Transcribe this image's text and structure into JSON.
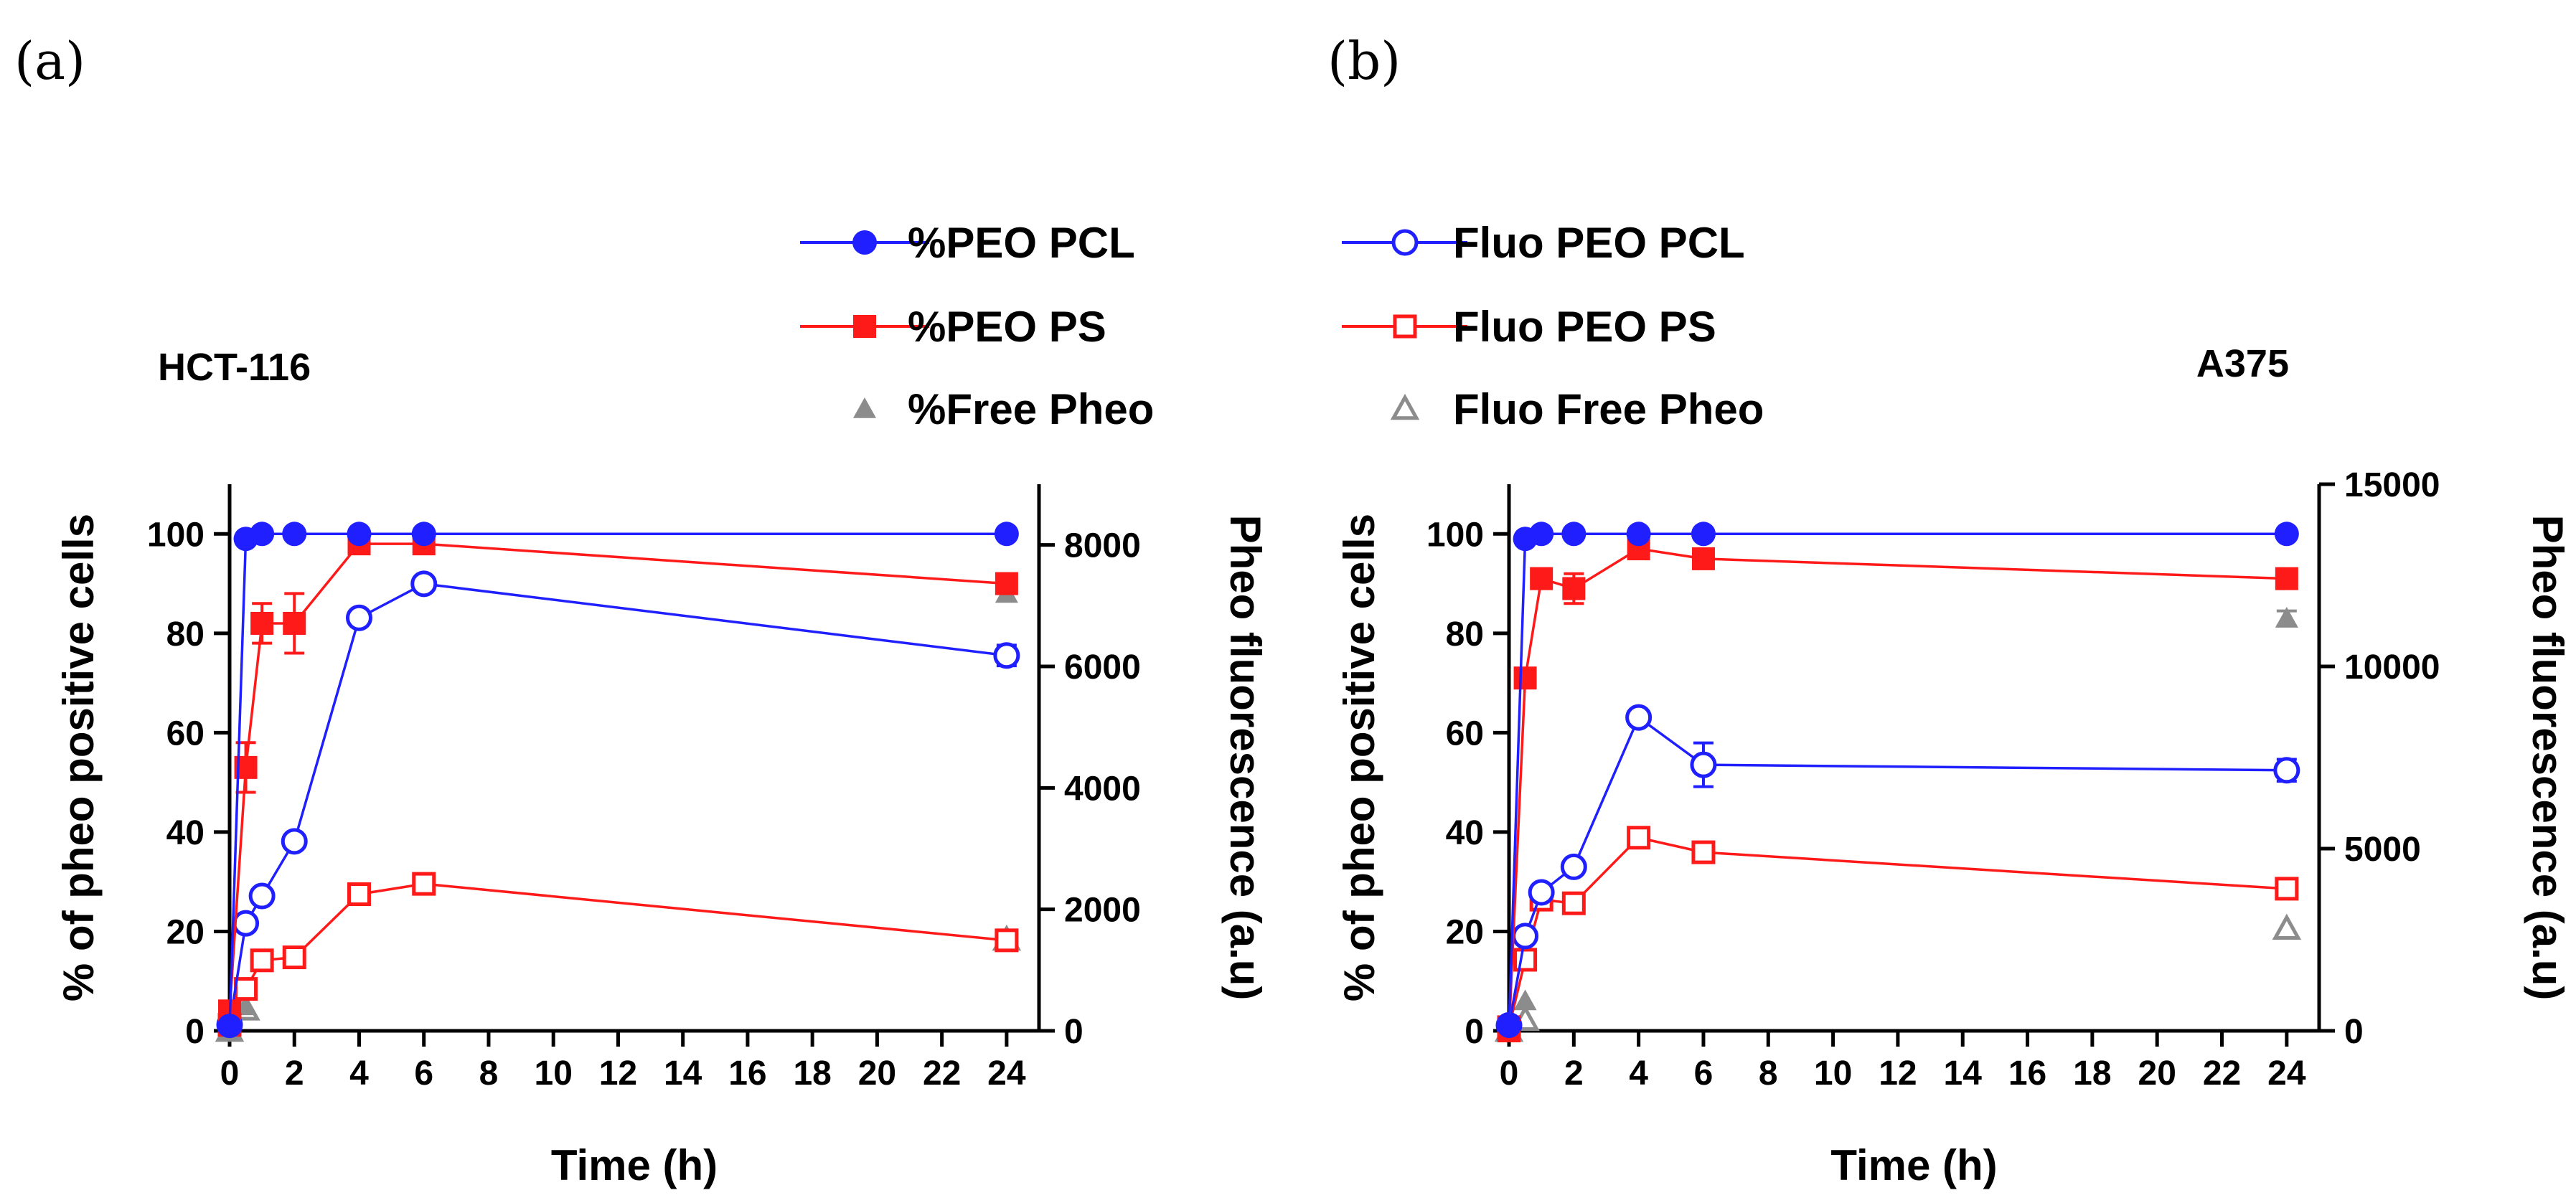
{
  "figure": {
    "panel_labels": [
      "(a)",
      "(b)"
    ],
    "legend": {
      "items": [
        {
          "key": "pct_peo_pcl",
          "label": "%PEO PCL",
          "color": "#1f1fff",
          "marker": "circle-filled"
        },
        {
          "key": "pct_peo_ps",
          "label": "%PEO PS",
          "color": "#ff1a1a",
          "marker": "square-filled"
        },
        {
          "key": "pct_free_pheo",
          "label": "%Free Pheo",
          "color": "#8c8c8c",
          "marker": "triangle-filled"
        },
        {
          "key": "fluo_peo_pcl",
          "label": "Fluo PEO PCL",
          "color": "#1f1fff",
          "marker": "circle-open"
        },
        {
          "key": "fluo_peo_ps",
          "label": "Fluo PEO PS",
          "color": "#ff1a1a",
          "marker": "square-open"
        },
        {
          "key": "fluo_free_pheo",
          "label": "Fluo Free Pheo",
          "color": "#8c8c8c",
          "marker": "triangle-open"
        }
      ]
    }
  },
  "chart_data": [
    {
      "type": "line",
      "panel": "(a)",
      "cell_line": "HCT-116",
      "xlabel": "Time (h)",
      "ylabel": "% of pheo positive cells",
      "y2label": "Pheo fluorescence (a.u)",
      "xlim": [
        0,
        25
      ],
      "ylim": [
        0,
        110
      ],
      "y2lim": [
        0,
        9000
      ],
      "xticks": [
        0,
        2,
        4,
        6,
        8,
        10,
        12,
        14,
        16,
        18,
        20,
        22,
        24
      ],
      "yticks": [
        0,
        20,
        40,
        60,
        80,
        100
      ],
      "y2ticks": [
        0,
        2000,
        4000,
        6000,
        8000
      ],
      "series": [
        {
          "key": "pct_peo_pcl",
          "name": "%PEO PCL",
          "axis": "left",
          "connect": true,
          "x": [
            0,
            0.5,
            1,
            2,
            4,
            6,
            24
          ],
          "y": [
            1,
            99,
            100,
            100,
            100,
            100,
            100
          ],
          "err": [
            0,
            0,
            0,
            0,
            0,
            0,
            0
          ]
        },
        {
          "key": "pct_peo_ps",
          "name": "%PEO PS",
          "axis": "left",
          "connect": true,
          "x": [
            0,
            0.5,
            1,
            2,
            4,
            6,
            24
          ],
          "y": [
            4,
            53,
            82,
            82,
            98,
            98,
            90
          ],
          "err": [
            0,
            5,
            4,
            6,
            1.5,
            1.5,
            1
          ]
        },
        {
          "key": "pct_free_pheo",
          "name": "%Free Pheo",
          "axis": "left",
          "connect": false,
          "x": [
            0,
            0.5,
            24
          ],
          "y": [
            0,
            5,
            88
          ],
          "err": [
            0,
            0,
            0
          ]
        },
        {
          "key": "fluo_peo_pcl",
          "name": "Fluo PEO PCL",
          "axis": "right",
          "connect": true,
          "x": [
            0,
            0.5,
            1,
            2,
            4,
            6,
            24
          ],
          "y": [
            100,
            1770,
            2220,
            3120,
            6800,
            7360,
            6180
          ],
          "err": [
            0,
            0,
            0,
            0,
            120,
            0,
            170
          ]
        },
        {
          "key": "fluo_peo_ps",
          "name": "Fluo PEO PS",
          "axis": "right",
          "connect": true,
          "x": [
            0,
            0.5,
            1,
            2,
            4,
            6,
            24
          ],
          "y": [
            100,
            690,
            1160,
            1210,
            2250,
            2420,
            1490
          ],
          "err": [
            0,
            0,
            0,
            0,
            0,
            0,
            0
          ]
        },
        {
          "key": "fluo_free_pheo",
          "name": "Fluo Free Pheo",
          "axis": "right",
          "connect": false,
          "x": [
            0,
            0.5,
            24
          ],
          "y": [
            0,
            350,
            1500
          ],
          "err": [
            0,
            0,
            0
          ]
        }
      ]
    },
    {
      "type": "line",
      "panel": "(b)",
      "cell_line": "A375",
      "xlabel": "Time (h)",
      "ylabel": "% of pheo positive cells",
      "y2label": "Pheo fluorescence (a.u)",
      "xlim": [
        0,
        25
      ],
      "ylim": [
        0,
        110
      ],
      "y2lim": [
        0,
        15000
      ],
      "xticks": [
        0,
        2,
        4,
        6,
        8,
        10,
        12,
        14,
        16,
        18,
        20,
        22,
        24
      ],
      "yticks": [
        0,
        20,
        40,
        60,
        80,
        100
      ],
      "y2ticks": [
        0,
        5000,
        10000,
        15000
      ],
      "series": [
        {
          "key": "pct_peo_pcl",
          "name": "%PEO PCL",
          "axis": "left",
          "connect": true,
          "x": [
            0,
            0.5,
            1,
            2,
            4,
            6,
            24
          ],
          "y": [
            1,
            99,
            100,
            100,
            100,
            100,
            100
          ],
          "err": [
            0,
            0,
            0,
            0,
            0,
            0,
            0
          ]
        },
        {
          "key": "pct_peo_ps",
          "name": "%PEO PS",
          "axis": "left",
          "connect": true,
          "x": [
            0,
            0.5,
            1,
            2,
            4,
            6,
            24
          ],
          "y": [
            0,
            71,
            91,
            89,
            97,
            95,
            91
          ],
          "err": [
            0,
            0,
            2,
            3,
            1,
            1,
            1
          ]
        },
        {
          "key": "pct_free_pheo",
          "name": "%Free Pheo",
          "axis": "left",
          "connect": false,
          "x": [
            0,
            0.5,
            24
          ],
          "y": [
            0,
            6,
            83
          ],
          "err": [
            0,
            0,
            1.5
          ]
        },
        {
          "key": "fluo_peo_pcl",
          "name": "Fluo PEO PCL",
          "axis": "right",
          "connect": true,
          "x": [
            0,
            0.5,
            1,
            2,
            4,
            6,
            24
          ],
          "y": [
            150,
            2600,
            3800,
            4500,
            8600,
            7300,
            7150
          ],
          "err": [
            0,
            0,
            0,
            0,
            0,
            600,
            300
          ]
        },
        {
          "key": "fluo_peo_ps",
          "name": "Fluo PEO PS",
          "axis": "right",
          "connect": true,
          "x": [
            0,
            0.5,
            1,
            2,
            4,
            6,
            24
          ],
          "y": [
            100,
            1950,
            3600,
            3500,
            5300,
            4900,
            3900
          ],
          "err": [
            0,
            0,
            0,
            0,
            0,
            0,
            0
          ]
        },
        {
          "key": "fluo_free_pheo",
          "name": "Fluo Free Pheo",
          "axis": "right",
          "connect": false,
          "x": [
            0,
            0.5,
            24
          ],
          "y": [
            0,
            300,
            2800
          ],
          "err": [
            0,
            0,
            0
          ]
        }
      ]
    }
  ]
}
